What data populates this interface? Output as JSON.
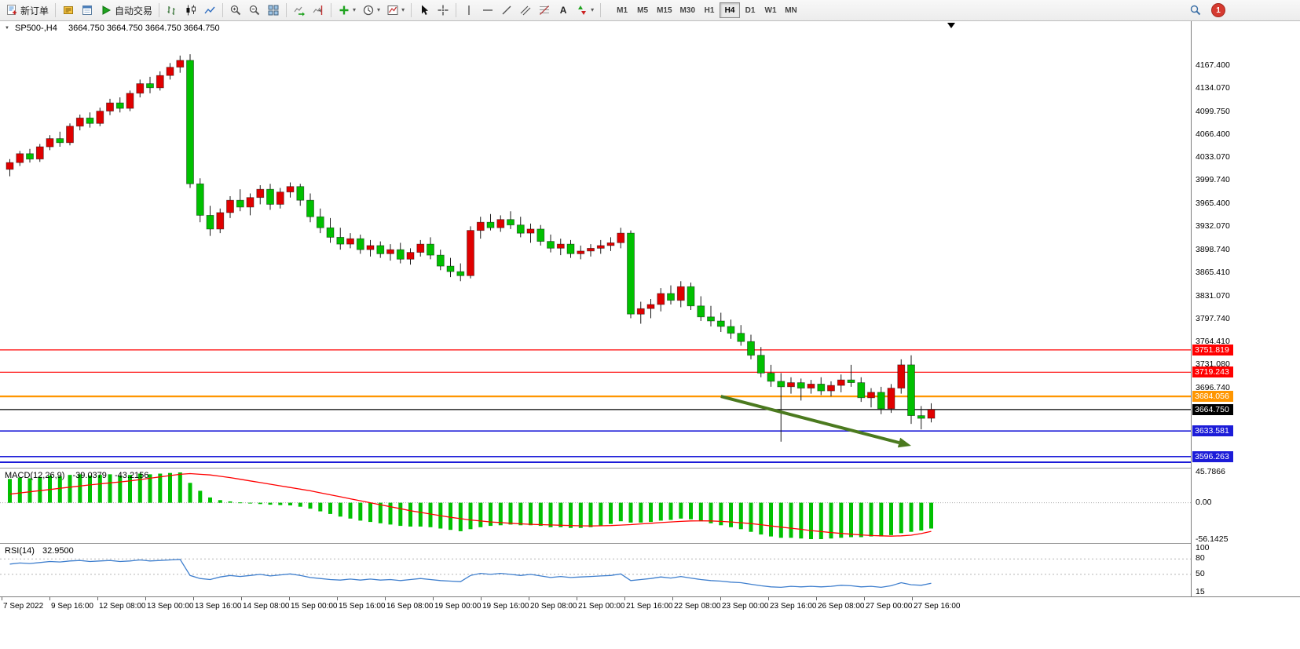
{
  "toolbar": {
    "new_order": "新订单",
    "autotrading": "自动交易",
    "text_tool": "A",
    "timeframes": [
      "M1",
      "M5",
      "M15",
      "M30",
      "H1",
      "H4",
      "D1",
      "W1",
      "MN"
    ],
    "active_timeframe": "H4",
    "notification_count": "1"
  },
  "chart_header": {
    "symbol_period": "SP500-,H4",
    "ohlc": "3664.750 3664.750 3664.750 3664.750"
  },
  "indicators": {
    "macd": {
      "label": "MACD(12,26,9)",
      "value_main": "-39.0379",
      "value_signal": "-43.2156",
      "axis": [
        "45.7866",
        "0.00",
        "-56.1425"
      ]
    },
    "rsi": {
      "label": "RSI(14)",
      "value": "32.9500",
      "axis": [
        "100",
        "80",
        "50",
        "15"
      ]
    }
  },
  "price_axis": {
    "labels": [
      "4167.400",
      "4134.070",
      "4099.750",
      "4066.400",
      "4033.070",
      "3999.740",
      "3965.400",
      "3932.070",
      "3898.740",
      "3865.410",
      "3831.070",
      "3797.740",
      "3764.410",
      "3731.080",
      "3696.740"
    ]
  },
  "time_axis": {
    "labels": [
      "7 Sep 2022",
      "9 Sep 16:00",
      "12 Sep 08:00",
      "13 Sep 00:00",
      "13 Sep 16:00",
      "14 Sep 08:00",
      "15 Sep 00:00",
      "15 Sep 16:00",
      "16 Sep 08:00",
      "19 Sep 00:00",
      "19 Sep 16:00",
      "20 Sep 08:00",
      "21 Sep 00:00",
      "21 Sep 16:00",
      "22 Sep 08:00",
      "23 Sep 00:00",
      "23 Sep 16:00",
      "26 Sep 08:00",
      "27 Sep 00:00",
      "27 Sep 16:00"
    ]
  },
  "chart_data": {
    "type": "candlestick",
    "symbol": "SP500-",
    "timeframe": "H4",
    "title": "SP500-,H4 3664.750 3664.750 3664.750 3664.750",
    "ylim": [
      3580,
      4230
    ],
    "colors": {
      "bull": "#e00000",
      "bear": "#00c000",
      "wick": "#1a1a1a"
    },
    "candles": [
      [
        4015,
        4030,
        4005,
        4025
      ],
      [
        4025,
        4042,
        4020,
        4038
      ],
      [
        4038,
        4045,
        4025,
        4030
      ],
      [
        4030,
        4052,
        4026,
        4048
      ],
      [
        4048,
        4065,
        4043,
        4060
      ],
      [
        4060,
        4070,
        4048,
        4054
      ],
      [
        4054,
        4082,
        4050,
        4078
      ],
      [
        4078,
        4095,
        4072,
        4090
      ],
      [
        4090,
        4098,
        4076,
        4082
      ],
      [
        4082,
        4105,
        4078,
        4100
      ],
      [
        4100,
        4118,
        4094,
        4112
      ],
      [
        4112,
        4120,
        4098,
        4104
      ],
      [
        4104,
        4130,
        4100,
        4126
      ],
      [
        4126,
        4146,
        4120,
        4140
      ],
      [
        4140,
        4150,
        4126,
        4134
      ],
      [
        4134,
        4158,
        4130,
        4152
      ],
      [
        4152,
        4170,
        4146,
        4164
      ],
      [
        4164,
        4181,
        4156,
        4174
      ],
      [
        4174,
        4183,
        3988,
        3994
      ],
      [
        3994,
        4002,
        3938,
        3948
      ],
      [
        3948,
        3962,
        3918,
        3928
      ],
      [
        3928,
        3958,
        3922,
        3952
      ],
      [
        3952,
        3976,
        3944,
        3970
      ],
      [
        3970,
        3986,
        3954,
        3960
      ],
      [
        3960,
        3980,
        3948,
        3974
      ],
      [
        3974,
        3992,
        3964,
        3986
      ],
      [
        3986,
        3994,
        3956,
        3964
      ],
      [
        3964,
        3988,
        3958,
        3982
      ],
      [
        3982,
        3996,
        3974,
        3990
      ],
      [
        3990,
        3994,
        3962,
        3970
      ],
      [
        3970,
        3980,
        3938,
        3946
      ],
      [
        3946,
        3958,
        3922,
        3930
      ],
      [
        3930,
        3944,
        3908,
        3916
      ],
      [
        3916,
        3930,
        3898,
        3906
      ],
      [
        3906,
        3922,
        3900,
        3914
      ],
      [
        3914,
        3920,
        3892,
        3898
      ],
      [
        3898,
        3912,
        3888,
        3904
      ],
      [
        3904,
        3910,
        3886,
        3892
      ],
      [
        3892,
        3906,
        3882,
        3898
      ],
      [
        3898,
        3908,
        3878,
        3884
      ],
      [
        3884,
        3900,
        3876,
        3894
      ],
      [
        3894,
        3912,
        3888,
        3906
      ],
      [
        3906,
        3916,
        3884,
        3890
      ],
      [
        3890,
        3898,
        3868,
        3874
      ],
      [
        3874,
        3886,
        3858,
        3866
      ],
      [
        3866,
        3878,
        3852,
        3860
      ],
      [
        3860,
        3932,
        3856,
        3926
      ],
      [
        3926,
        3946,
        3914,
        3938
      ],
      [
        3938,
        3950,
        3926,
        3930
      ],
      [
        3930,
        3948,
        3924,
        3942
      ],
      [
        3942,
        3954,
        3928,
        3934
      ],
      [
        3934,
        3946,
        3916,
        3922
      ],
      [
        3922,
        3936,
        3908,
        3928
      ],
      [
        3928,
        3934,
        3904,
        3910
      ],
      [
        3910,
        3920,
        3894,
        3900
      ],
      [
        3900,
        3914,
        3890,
        3906
      ],
      [
        3906,
        3912,
        3886,
        3892
      ],
      [
        3892,
        3904,
        3884,
        3896
      ],
      [
        3896,
        3906,
        3888,
        3900
      ],
      [
        3900,
        3912,
        3892,
        3904
      ],
      [
        3904,
        3916,
        3896,
        3908
      ],
      [
        3908,
        3930,
        3900,
        3922
      ],
      [
        3922,
        3926,
        3798,
        3804
      ],
      [
        3804,
        3822,
        3790,
        3812
      ],
      [
        3812,
        3826,
        3798,
        3818
      ],
      [
        3818,
        3842,
        3808,
        3834
      ],
      [
        3834,
        3846,
        3818,
        3824
      ],
      [
        3824,
        3852,
        3814,
        3844
      ],
      [
        3844,
        3850,
        3810,
        3816
      ],
      [
        3816,
        3830,
        3794,
        3800
      ],
      [
        3800,
        3816,
        3786,
        3794
      ],
      [
        3794,
        3806,
        3778,
        3786
      ],
      [
        3786,
        3796,
        3768,
        3776
      ],
      [
        3776,
        3788,
        3758,
        3764
      ],
      [
        3764,
        3774,
        3738,
        3744
      ],
      [
        3744,
        3756,
        3712,
        3718
      ],
      [
        3718,
        3730,
        3698,
        3706
      ],
      [
        3706,
        3718,
        3618,
        3698
      ],
      [
        3698,
        3712,
        3688,
        3704
      ],
      [
        3704,
        3710,
        3678,
        3696
      ],
      [
        3696,
        3708,
        3688,
        3702
      ],
      [
        3702,
        3712,
        3686,
        3692
      ],
      [
        3692,
        3706,
        3684,
        3700
      ],
      [
        3700,
        3716,
        3690,
        3708
      ],
      [
        3708,
        3730,
        3698,
        3704
      ],
      [
        3704,
        3712,
        3676,
        3682
      ],
      [
        3682,
        3696,
        3668,
        3690
      ],
      [
        3690,
        3698,
        3658,
        3666
      ],
      [
        3666,
        3702,
        3660,
        3696
      ],
      [
        3696,
        3738,
        3688,
        3730
      ],
      [
        3730,
        3744,
        3644,
        3656
      ],
      [
        3656,
        3670,
        3636,
        3652
      ],
      [
        3652,
        3674,
        3646,
        3664.75
      ]
    ],
    "hlines": [
      {
        "price": 3751.819,
        "color": "#ff0000",
        "width": 1.2,
        "label": "3751.819"
      },
      {
        "price": 3719.243,
        "color": "#ff0000",
        "width": 1.2,
        "label": "3719.243"
      },
      {
        "price": 3684.056,
        "color": "#ff9600",
        "width": 2.2,
        "label": "3684.056"
      },
      {
        "price": 3633.581,
        "color": "#1c1cd8",
        "width": 1.6,
        "label": "3633.581"
      },
      {
        "price": 3596.263,
        "color": "#1c1cd8",
        "width": 1.6,
        "label": "3596.263"
      },
      {
        "price": 3588.0,
        "color": "#1c1cd8",
        "width": 2.0,
        "label": null
      }
    ],
    "current_price": {
      "price": 3664.75,
      "color": "#000000",
      "label": "3664.750"
    },
    "trend_arrow": {
      "from": {
        "index": 71,
        "price": 3684
      },
      "to": {
        "index": 90,
        "price": 3612
      },
      "color": "#4b7a1f"
    },
    "macd": {
      "range": [
        -56.1425,
        45.7866
      ],
      "hist_color": "#00c000",
      "signal_color": "#ff0000",
      "histogram": [
        36,
        38,
        37,
        39,
        41,
        40,
        42,
        43,
        41,
        42,
        43,
        41,
        42,
        44,
        43,
        44,
        45,
        45.8,
        30,
        18,
        8,
        4,
        2,
        0.5,
        -1,
        -2,
        -3,
        -3.5,
        -4,
        -6,
        -9,
        -13,
        -17,
        -21,
        -24,
        -27,
        -29,
        -31,
        -33,
        -35,
        -36,
        -36,
        -37,
        -39,
        -41,
        -43,
        -40,
        -37,
        -35,
        -34,
        -33,
        -34,
        -34,
        -35,
        -37,
        -37,
        -38,
        -38,
        -37,
        -35,
        -32,
        -28,
        -30,
        -30,
        -29,
        -27,
        -26,
        -24,
        -25,
        -28,
        -31,
        -34,
        -37,
        -40,
        -44,
        -48,
        -51,
        -53,
        -53,
        -54,
        -55,
        -55,
        -54,
        -53,
        -52,
        -52,
        -51,
        -51,
        -49,
        -46,
        -44,
        -42,
        -39.04
      ],
      "signal": [
        13,
        14.8,
        16.5,
        18.3,
        20,
        21.8,
        23.5,
        25.3,
        27,
        28.5,
        30,
        31.5,
        33,
        35,
        37,
        39,
        41,
        43,
        44,
        43,
        42,
        40,
        38,
        35.5,
        33,
        30.5,
        28,
        25.5,
        23,
        20.5,
        18,
        15,
        12,
        9,
        6,
        3,
        0,
        -3,
        -6,
        -9,
        -12,
        -14.5,
        -17,
        -19.5,
        -22,
        -24,
        -26,
        -27.5,
        -29,
        -30,
        -31,
        -31.8,
        -32.5,
        -33,
        -33.5,
        -34,
        -34.5,
        -34.8,
        -35,
        -34.8,
        -34.5,
        -33.8,
        -33,
        -32,
        -31,
        -30,
        -29,
        -28.2,
        -27.5,
        -27.4,
        -27.5,
        -28.2,
        -29,
        -30.2,
        -31.5,
        -33.2,
        -35,
        -36.8,
        -38.5,
        -40.2,
        -42,
        -43.5,
        -45,
        -46.3,
        -47.5,
        -48.5,
        -49.5,
        -50,
        -50.5,
        -50,
        -49,
        -46.5,
        -43.22
      ]
    },
    "rsi": {
      "range": [
        15,
        100
      ],
      "color": "#3f7fce",
      "levels": [
        80,
        50
      ],
      "values": [
        70,
        72,
        71,
        73,
        75,
        74,
        76,
        77,
        75,
        76,
        77,
        75,
        76,
        78,
        76,
        77,
        78,
        79,
        48,
        42,
        40,
        45,
        48,
        46,
        48,
        50,
        47,
        49,
        51,
        48,
        44,
        42,
        40,
        39,
        41,
        39,
        41,
        39,
        40,
        38,
        40,
        42,
        40,
        38,
        37,
        36,
        48,
        52,
        50,
        52,
        50,
        48,
        50,
        47,
        44,
        46,
        44,
        45,
        46,
        47,
        48,
        51,
        38,
        40,
        42,
        45,
        43,
        46,
        43,
        40,
        38,
        37,
        35,
        34,
        31,
        28,
        26,
        25,
        27,
        26,
        27,
        26,
        27,
        29,
        28,
        26,
        27,
        25,
        28,
        34,
        30,
        29,
        32.95
      ]
    }
  }
}
